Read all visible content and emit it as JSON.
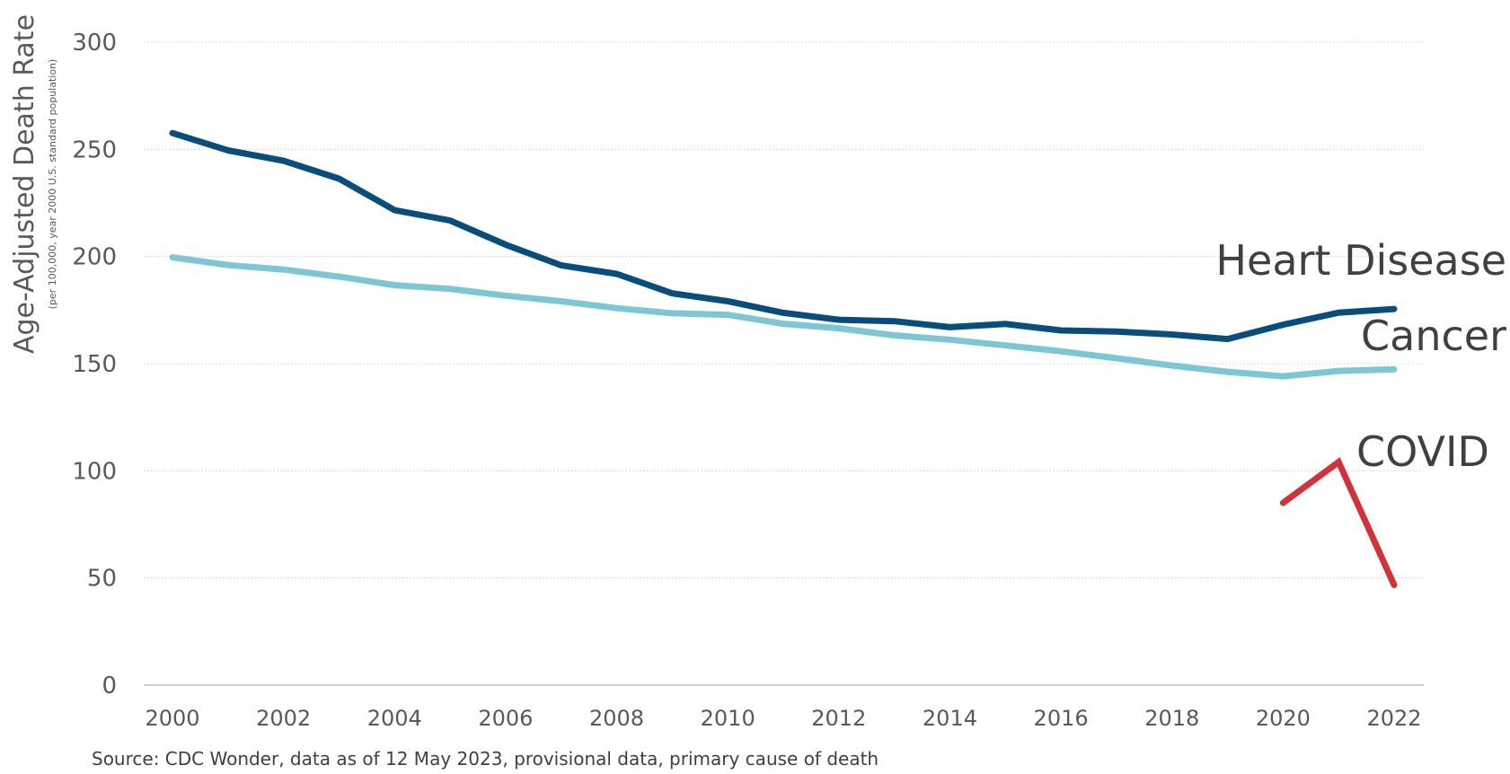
{
  "chart_data": {
    "type": "line",
    "x": [
      2000,
      2001,
      2002,
      2003,
      2004,
      2005,
      2006,
      2007,
      2008,
      2009,
      2010,
      2011,
      2012,
      2013,
      2014,
      2015,
      2016,
      2017,
      2018,
      2019,
      2020,
      2021,
      2022
    ],
    "xticks": [
      "2000",
      "2002",
      "2004",
      "2006",
      "2008",
      "2010",
      "2012",
      "2014",
      "2016",
      "2018",
      "2020",
      "2022"
    ],
    "yticks": [
      "0",
      "50",
      "100",
      "150",
      "200",
      "250",
      "300"
    ],
    "ylim": [
      0,
      300
    ],
    "xlim": [
      2000,
      2022
    ],
    "ylabel": "Age-Adjusted Death Rate",
    "ylabel_sub": "(per 100,000, year 2000 U.S. standard population)",
    "grid": true,
    "series": [
      {
        "name": "Heart Disease",
        "color": "#084D7C",
        "values": [
          257.6,
          249.5,
          244.7,
          236.3,
          221.6,
          216.8,
          205.5,
          195.9,
          191.9,
          182.8,
          179.1,
          173.7,
          170.5,
          169.8,
          167.0,
          168.5,
          165.5,
          165.0,
          163.6,
          161.5,
          168.2,
          173.8,
          175.5
        ]
      },
      {
        "name": "Cancer",
        "color": "#7DC6D5",
        "values": [
          199.6,
          196.0,
          193.9,
          190.6,
          186.6,
          184.9,
          181.7,
          179.1,
          175.9,
          173.5,
          172.8,
          168.6,
          166.5,
          163.2,
          161.2,
          158.5,
          155.8,
          152.5,
          149.1,
          146.2,
          144.1,
          146.6,
          147.3
        ]
      },
      {
        "name": "COVID",
        "color": "#D13438",
        "values": [
          null,
          null,
          null,
          null,
          null,
          null,
          null,
          null,
          null,
          null,
          null,
          null,
          null,
          null,
          null,
          null,
          null,
          null,
          null,
          null,
          85.0,
          104.1,
          46.7
        ]
      }
    ],
    "source": "Source: CDC Wonder, data as of 12 May 2023, provisional data, primary cause of death"
  }
}
